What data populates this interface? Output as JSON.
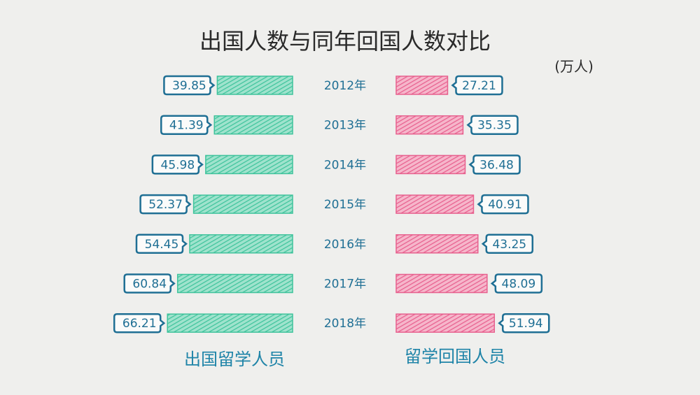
{
  "chart_data": {
    "type": "bar",
    "orientation": "horizontal-butterfly",
    "title": "出国人数与同年回国人数对比",
    "unit": "(万人)",
    "categories": [
      "2012年",
      "2013年",
      "2014年",
      "2015年",
      "2016年",
      "2017年",
      "2018年"
    ],
    "series": [
      {
        "name": "出国留学人员",
        "values": [
          39.85,
          41.39,
          45.98,
          52.37,
          54.45,
          60.84,
          66.21
        ],
        "color": "#3fc39c",
        "side": "left"
      },
      {
        "name": "留学回国人员",
        "values": [
          27.21,
          35.35,
          36.48,
          40.91,
          43.25,
          48.09,
          51.94
        ],
        "color": "#e7608e",
        "side": "right"
      }
    ],
    "label_color": "#1f6f94",
    "grid": false
  }
}
